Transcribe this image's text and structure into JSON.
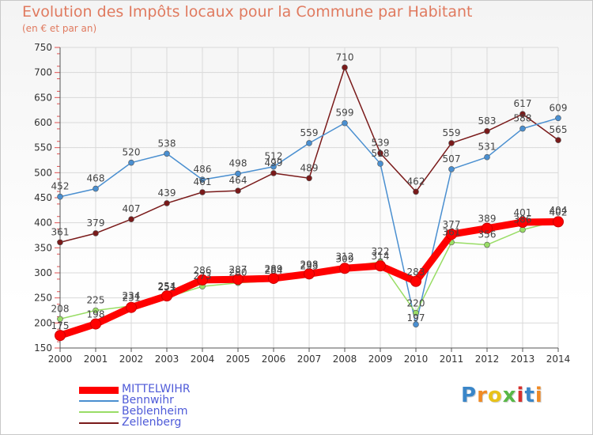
{
  "header": {
    "title": "Evolution des Impôts locaux pour la Commune par Habitant",
    "subtitle": "(en € et par an)"
  },
  "brand": {
    "letters": [
      "P",
      "r",
      "o",
      "x",
      "i",
      "t",
      "i"
    ],
    "colors": [
      "#3a86c8",
      "#f08a24",
      "#e8c21a",
      "#58b847",
      "#d6302e",
      "#3a86c8",
      "#f08a24"
    ]
  },
  "chart_data": {
    "type": "line",
    "title": "Evolution des Impôts locaux pour la Commune par Habitant",
    "subtitle": "(en € et par an)",
    "xlabel": "",
    "ylabel": "",
    "x": [
      "2000",
      "2001",
      "2002",
      "2003",
      "2004",
      "2005",
      "2006",
      "2007",
      "2008",
      "2009",
      "2010",
      "2011",
      "2012",
      "2013",
      "2014"
    ],
    "ylim": [
      150,
      750
    ],
    "yticks": [
      "150",
      "200",
      "250",
      "300",
      "350",
      "400",
      "450",
      "500",
      "550",
      "600",
      "650",
      "700",
      "750"
    ],
    "grid": true,
    "legend_position": "bottom-left",
    "series": [
      {
        "name": "MITTELWIHR",
        "color": "#ff0000",
        "values": [
          175,
          198,
          231,
          254,
          286,
          287,
          289,
          298,
          309,
          314,
          283,
          377,
          389,
          401,
          402
        ],
        "labels": [
          "175",
          "198",
          "231",
          "254",
          "286",
          "287",
          "289",
          "298",
          "309",
          "314",
          "283",
          "377",
          "389",
          "401",
          "402"
        ]
      },
      {
        "name": "Bennwihr",
        "color": "#4a8fd0",
        "values": [
          452,
          468,
          520,
          538,
          486,
          498,
          512,
          559,
          599,
          518,
          197,
          507,
          531,
          588,
          609
        ],
        "labels": [
          "452",
          "468",
          "520",
          "538",
          "486",
          "498",
          "512",
          "559",
          "599",
          "518",
          "197",
          "507",
          "531",
          "588",
          "609"
        ]
      },
      {
        "name": "Beblenheim",
        "color": "#99dd66",
        "values": [
          208,
          225,
          234,
          251,
          273,
          280,
          284,
          293,
          312,
          322,
          220,
          361,
          356,
          386,
          404
        ],
        "labels": [
          "208",
          "225",
          "234",
          "251",
          "273",
          "280",
          "284",
          "293",
          "312",
          "322",
          "220",
          "361",
          "356",
          "386",
          "404"
        ]
      },
      {
        "name": "Zellenberg",
        "color": "#7a1a1a",
        "values": [
          361,
          379,
          407,
          439,
          461,
          464,
          499,
          489,
          710,
          539,
          462,
          559,
          583,
          617,
          565
        ],
        "labels": [
          "361",
          "379",
          "407",
          "439",
          "461",
          "464",
          "499",
          "489",
          "710",
          "539",
          "462",
          "559",
          "583",
          "617",
          "565"
        ]
      }
    ]
  }
}
